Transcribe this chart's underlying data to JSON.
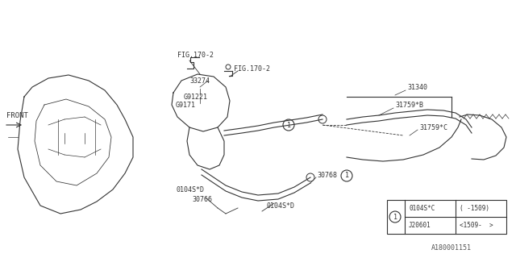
{
  "bg_color": "#ffffff",
  "line_color": "#333333",
  "diagram_id": "A180001151",
  "title": "",
  "labels": {
    "front": "FRONT",
    "fig170_2_left": "FIG.170-2",
    "fig170_2_right": "FIG.170-2",
    "part_33274": "33274",
    "part_g91221": "G91221",
    "part_g9171": "G9171",
    "part_31340": "31340",
    "part_31759b": "31759*B",
    "part_31759c": "31759*C",
    "part_30768": "30768",
    "part_30766": "30766",
    "part_0104sd_1": "0104S*D",
    "part_0104sd_2": "0104S*D",
    "legend_part1": "0104S*C",
    "legend_range1": "( -1509)",
    "legend_part2": "J20601",
    "legend_range2": "<1509-  >"
  },
  "circle_marker": "1"
}
